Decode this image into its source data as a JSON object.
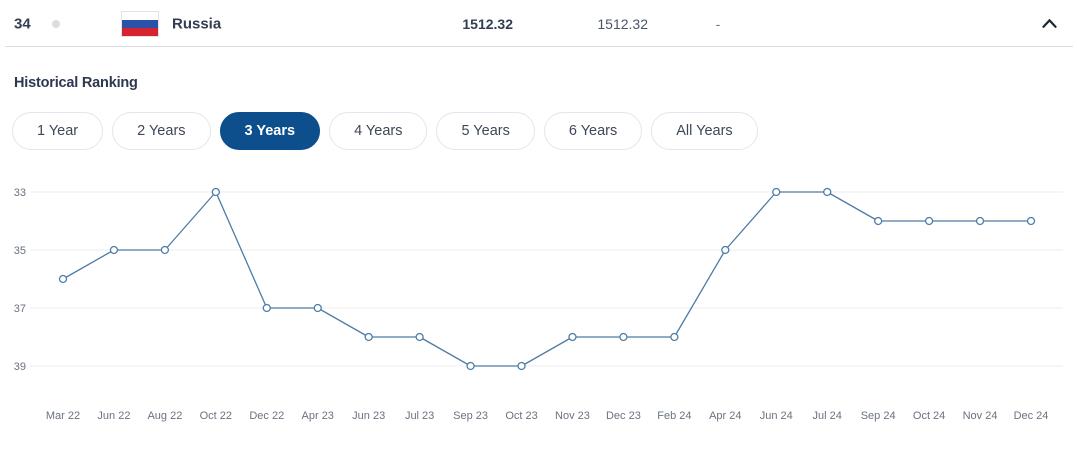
{
  "ranking_row": {
    "rank": "34",
    "team": "Russia",
    "points": "1512.32",
    "previous_points": "1512.32",
    "change": "-"
  },
  "history": {
    "title": "Historical Ranking",
    "tabs": [
      {
        "label": "1 Year",
        "selected": false
      },
      {
        "label": "2 Years",
        "selected": false
      },
      {
        "label": "3 Years",
        "selected": true
      },
      {
        "label": "4 Years",
        "selected": false
      },
      {
        "label": "5 Years",
        "selected": false
      },
      {
        "label": "6 Years",
        "selected": false
      },
      {
        "label": "All Years",
        "selected": false
      }
    ]
  },
  "chart_data": {
    "type": "line",
    "title": "Historical Ranking",
    "categories": [
      "Mar 22",
      "Jun 22",
      "Aug 22",
      "Oct 22",
      "Dec 22",
      "Apr 23",
      "Jun 23",
      "Jul 23",
      "Sep 23",
      "Oct 23",
      "Nov 23",
      "Dec 23",
      "Feb 24",
      "Apr 24",
      "Jun 24",
      "Jul 24",
      "Sep 24",
      "Oct 24",
      "Nov 24",
      "Dec 24"
    ],
    "values": [
      36,
      35,
      35,
      33,
      37,
      37,
      38,
      38,
      39,
      39,
      38,
      38,
      38,
      35,
      33,
      33,
      34,
      34,
      34,
      34
    ],
    "xlabel": "",
    "ylabel": "",
    "y_ticks": [
      33,
      35,
      37,
      39
    ],
    "ylim": [
      33,
      39
    ],
    "y_inverted": true,
    "grid": true,
    "legend": "none",
    "line_color": "#4d7ca7",
    "marker": "open-circle",
    "grid_color": "#ededee",
    "tick_color": "#6a7380"
  },
  "colors": {
    "accent_blue": "#0d4e8c",
    "text_dark": "#333e53",
    "text_muted": "#6a7380",
    "separator": "#dadde2",
    "flag_blue": "#2b52a8",
    "flag_red": "#d7232e"
  },
  "icons": {
    "collapse": "chevron-up"
  }
}
